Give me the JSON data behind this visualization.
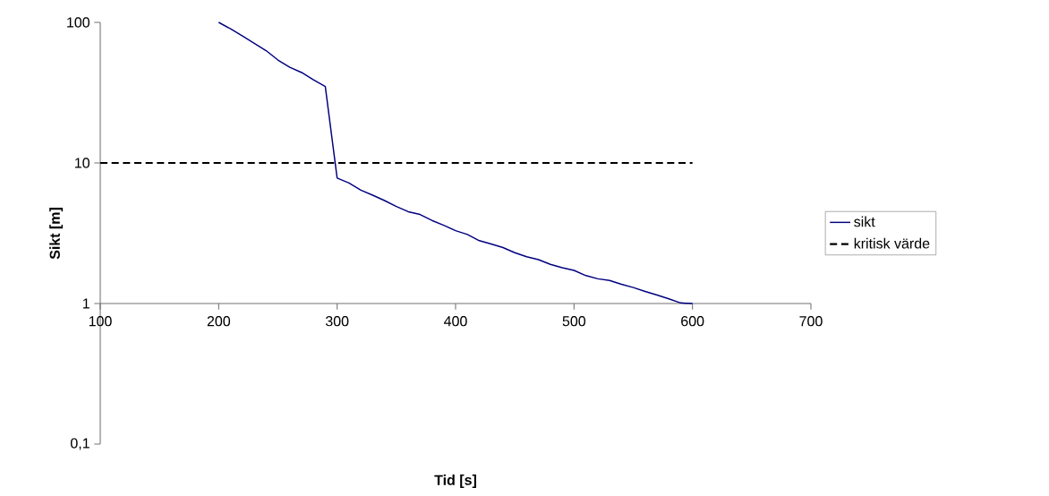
{
  "chart_data": {
    "type": "line",
    "xlabel": "Tid [s]",
    "ylabel": "Sikt [m]",
    "log": "y",
    "legend": "right",
    "xlim": [
      100,
      700
    ],
    "ylim": [
      0.1,
      100
    ],
    "xticks": [
      100,
      200,
      300,
      400,
      500,
      600,
      700
    ],
    "yticks": [
      {
        "value": 0.1,
        "label": "0,1"
      },
      1,
      10,
      100
    ],
    "series": [
      {
        "name": "sikt",
        "color": "#000080",
        "line_style": "solid",
        "x": [
          200,
          210,
          220,
          230,
          240,
          250,
          260,
          270,
          280,
          290,
          300,
          310,
          320,
          330,
          340,
          350,
          360,
          370,
          380,
          390,
          400,
          410,
          420,
          430,
          440,
          450,
          460,
          470,
          480,
          490,
          500,
          510,
          520,
          530,
          540,
          550,
          560,
          570,
          580,
          590,
          600
        ],
        "values": [
          100,
          90,
          80,
          71,
          63,
          54,
          48,
          44,
          39,
          35,
          7.8,
          7.2,
          6.4,
          5.9,
          5.4,
          4.9,
          4.5,
          4.3,
          3.9,
          3.6,
          3.3,
          3.1,
          2.8,
          2.65,
          2.5,
          2.3,
          2.15,
          2.05,
          1.9,
          1.8,
          1.72,
          1.58,
          1.5,
          1.46,
          1.37,
          1.3,
          1.22,
          1.15,
          1.08,
          1.01,
          1.0
        ]
      },
      {
        "name": "kritisk värde",
        "color": "#000000",
        "line_style": "dashed",
        "x": [
          100,
          600
        ],
        "values": [
          10,
          10
        ]
      }
    ]
  }
}
